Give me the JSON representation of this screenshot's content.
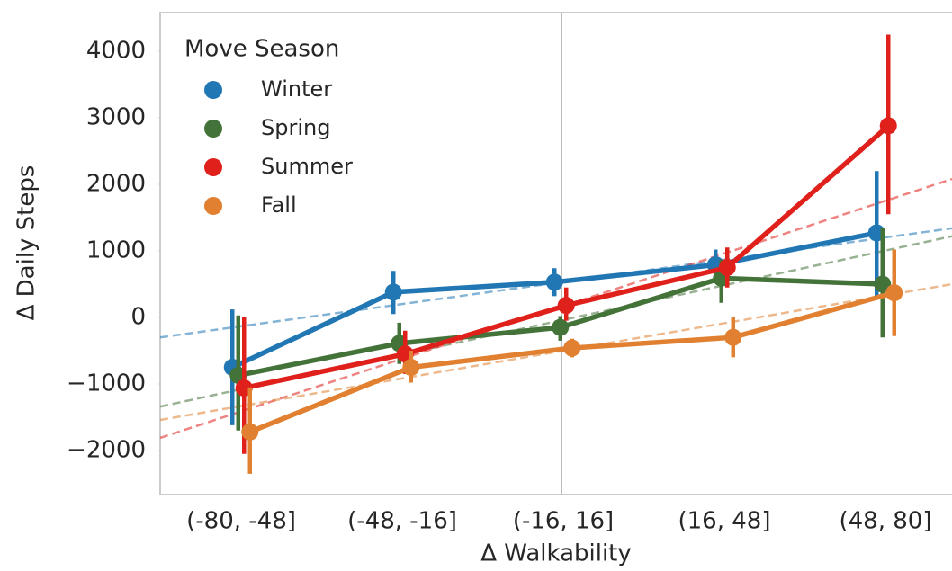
{
  "chart_data": {
    "type": "pointplot",
    "xlabel": "Δ Walkability",
    "ylabel": "Δ Daily Steps",
    "legend_title": "Move Season",
    "legend_loc": "upper left",
    "categories": [
      "(-80, -48]",
      "(-48, -16]",
      "(-16, 16]",
      "(16, 48]",
      "(48, 80]"
    ],
    "ylim": [
      -2662,
      4581
    ],
    "yticks": [
      {
        "value": -2000,
        "label": "−2000"
      },
      {
        "value": -1000,
        "label": "−1000"
      },
      0,
      1000,
      2000,
      3000,
      4000
    ],
    "series": [
      {
        "name": "Winter",
        "color": "#2177b4",
        "values": [
          -750,
          380,
          530,
          790,
          1270
        ],
        "ci": [
          [
            -1620,
            120
          ],
          [
            50,
            700
          ],
          [
            320,
            740
          ],
          [
            520,
            1020
          ],
          [
            300,
            2200
          ]
        ],
        "trend": [
          -300,
          1340
        ]
      },
      {
        "name": "Spring",
        "color": "#44733a",
        "values": [
          -870,
          -390,
          -150,
          590,
          500
        ],
        "ci": [
          [
            -1700,
            30
          ],
          [
            -700,
            -80
          ],
          [
            -350,
            20
          ],
          [
            220,
            870
          ],
          [
            -300,
            1350
          ]
        ],
        "trend": [
          -1340,
          1220
        ]
      },
      {
        "name": "Summer",
        "color": "#e0201b",
        "values": [
          -1060,
          -550,
          180,
          750,
          2880
        ],
        "ci": [
          [
            -2050,
            0
          ],
          [
            -850,
            -200
          ],
          [
            -50,
            450
          ],
          [
            450,
            1050
          ],
          [
            1550,
            4250
          ]
        ],
        "trend": [
          -1810,
          2080
        ]
      },
      {
        "name": "Fall",
        "color": "#e08030",
        "values": [
          -1720,
          -750,
          -460,
          -300,
          370
        ],
        "ci": [
          [
            -2350,
            -1050
          ],
          [
            -980,
            -500
          ],
          [
            -600,
            -320
          ],
          [
            -600,
            0
          ],
          [
            -280,
            1020
          ]
        ],
        "trend": [
          -1540,
          500
        ]
      }
    ]
  }
}
